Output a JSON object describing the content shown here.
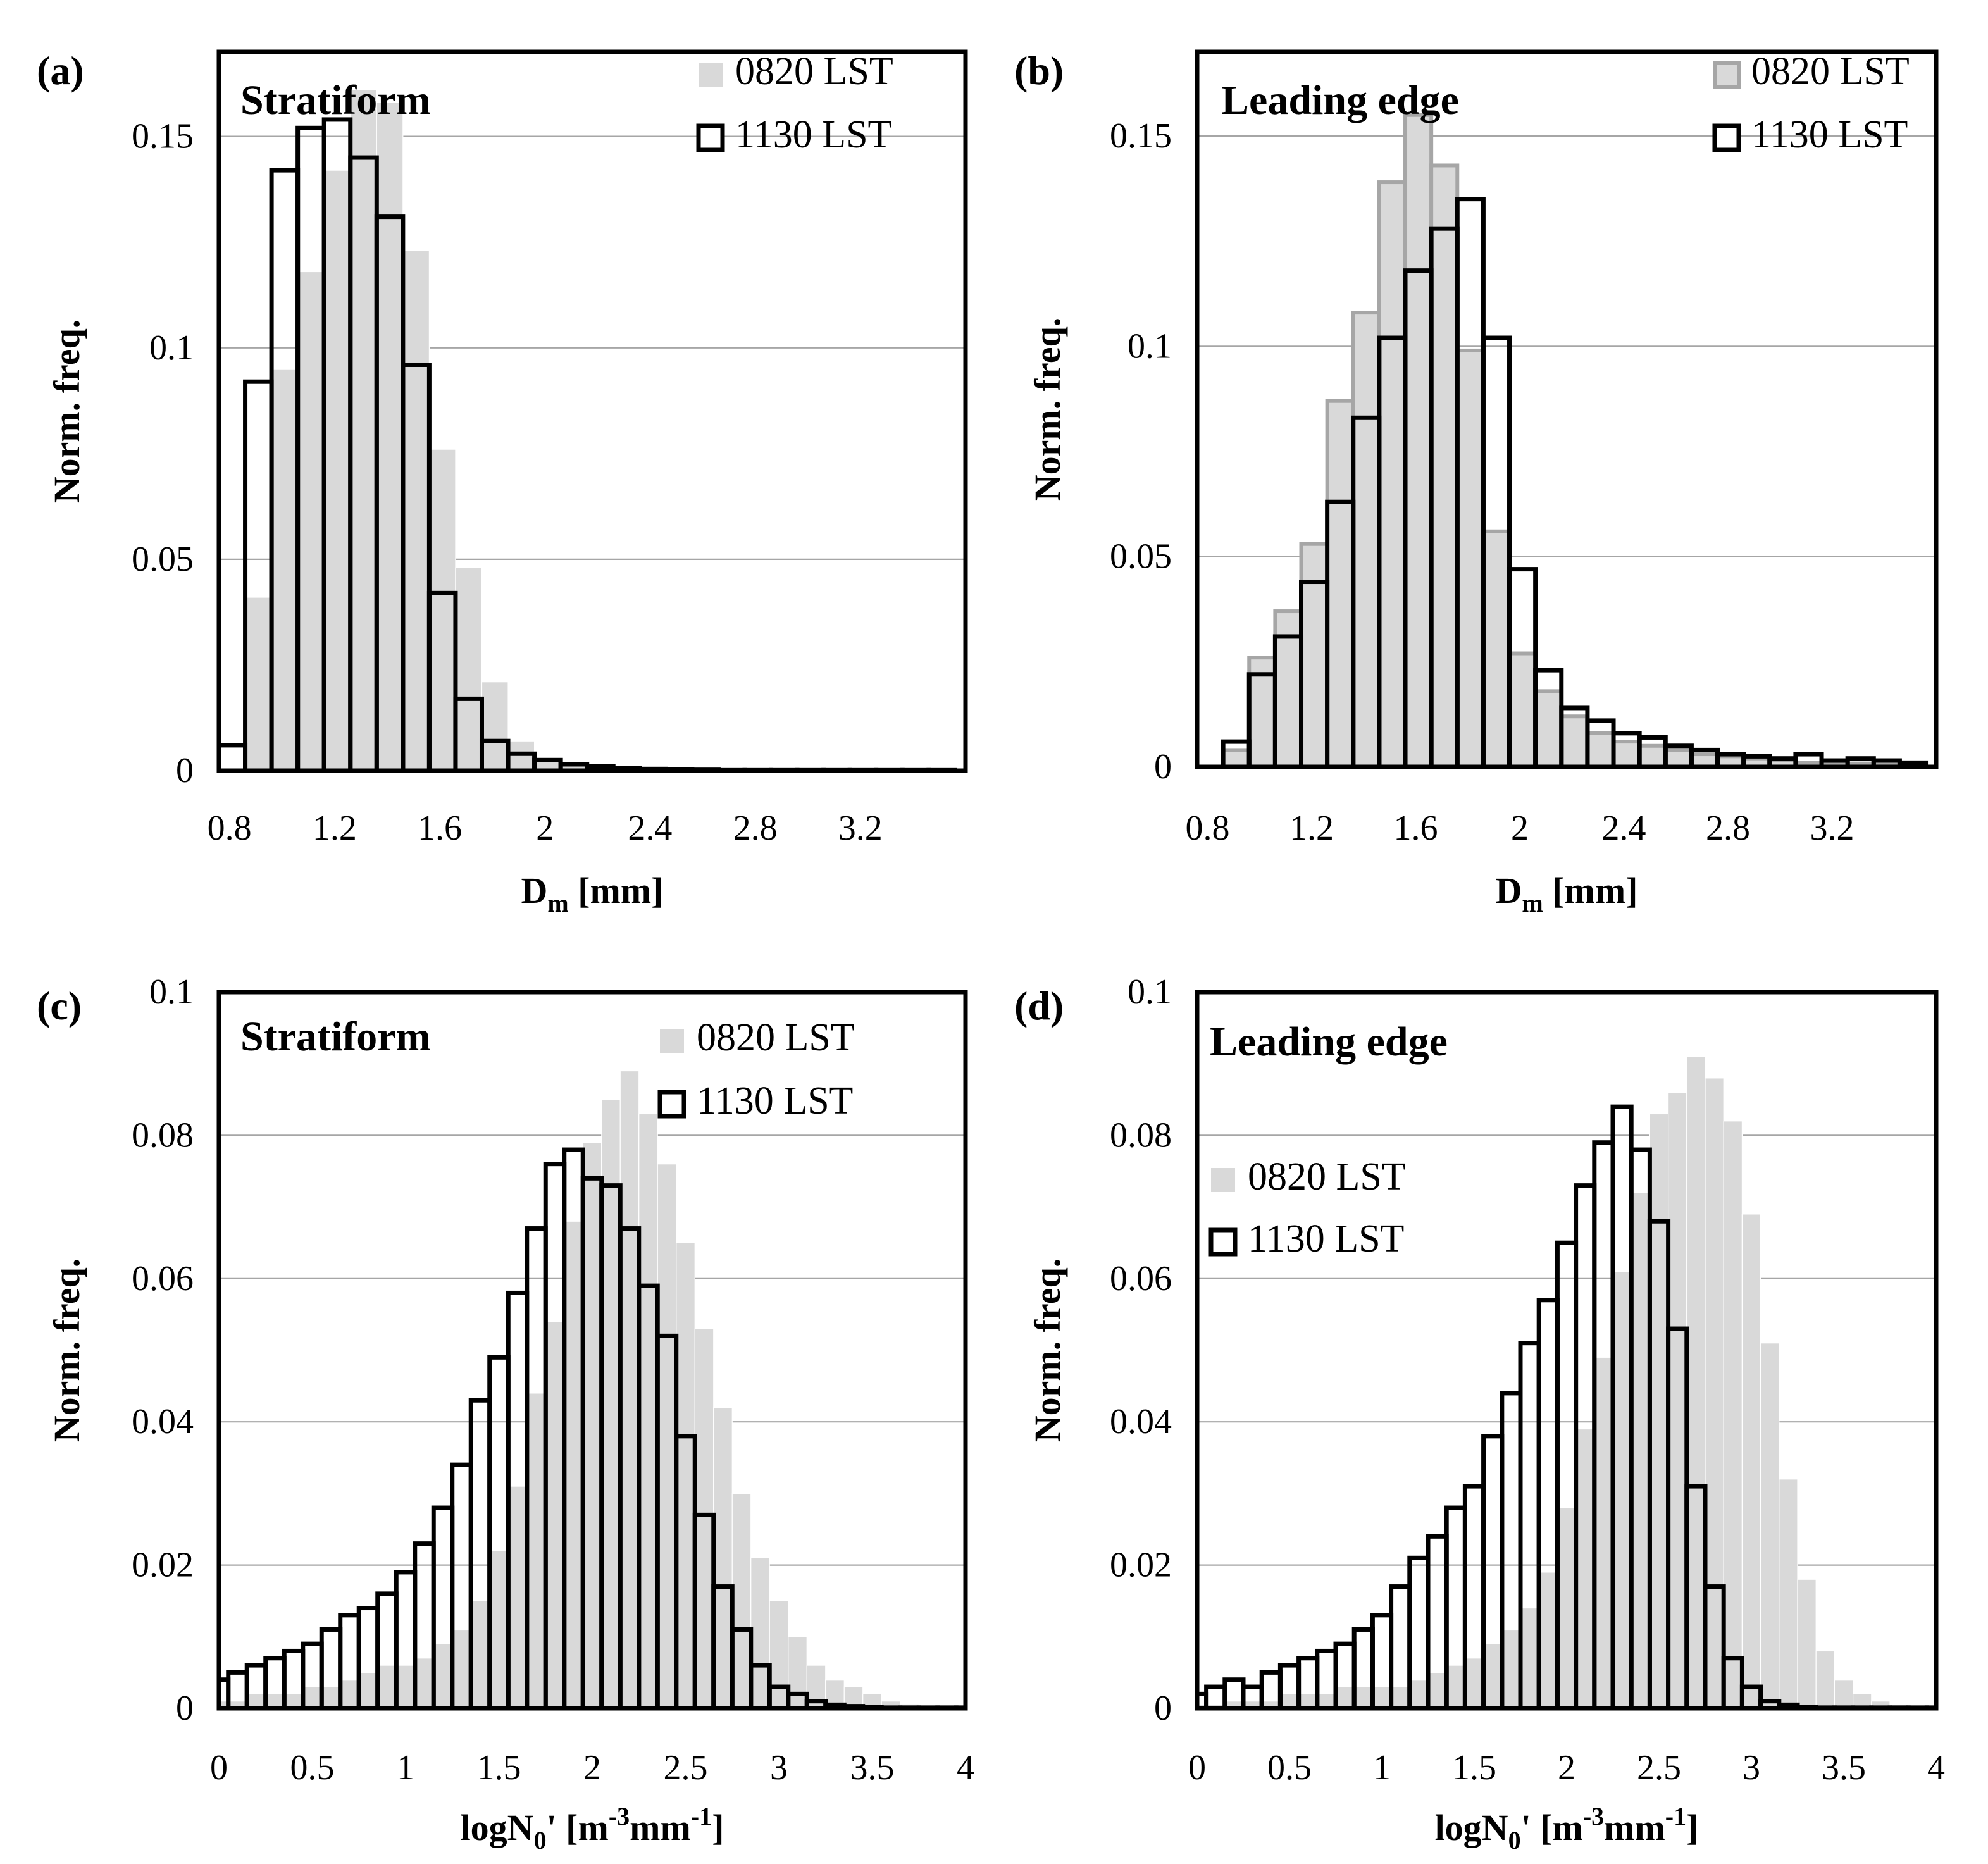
{
  "colors": {
    "series_0820_fill": "#d9d9d9",
    "series_0820_edge_leading": "#a6a6a6",
    "series_1130_edge": "#000000",
    "grid": "#a6a6a6"
  },
  "chart_data": [
    {
      "id": "a",
      "panel_label": "(a)",
      "type": "bar",
      "title": "Stratiform",
      "xlabel_main": "D",
      "xlabel_sub": "m",
      "xlabel_unit": " [mm]",
      "ylabel": "Norm. freq.",
      "xlim": [
        0.76,
        3.6
      ],
      "ylim": [
        0,
        0.17
      ],
      "xticks": [
        0.8,
        1.2,
        1.6,
        2,
        2.4,
        2.8,
        3.2
      ],
      "xtick_labels": [
        "0.8",
        "1.2",
        "1.6",
        "2",
        "2.4",
        "2.8",
        "3.2"
      ],
      "yticks": [
        0,
        0.05,
        0.1,
        0.15
      ],
      "ytick_labels": [
        "0",
        "0.05",
        "0.1",
        "0.15"
      ],
      "grid": true,
      "legend_position": "top-right",
      "bin_start": 0.76,
      "bin_width": 0.1,
      "series": [
        {
          "name": "0820 LST",
          "style": "fill",
          "values": [
            0.0,
            0.041,
            0.095,
            0.118,
            0.142,
            0.161,
            0.158,
            0.123,
            0.076,
            0.048,
            0.021,
            0.007,
            0.003,
            0.0015,
            0.001,
            0.0006,
            0.0004,
            0.0003,
            0.0002,
            0.0001,
            0.0001,
            0.0001,
            0.0001,
            0.0001,
            0.0001,
            0.0001,
            0.0001,
            0.0001
          ]
        },
        {
          "name": "1130 LST",
          "style": "outline",
          "values": [
            0.006,
            0.092,
            0.142,
            0.152,
            0.154,
            0.145,
            0.131,
            0.096,
            0.042,
            0.017,
            0.007,
            0.004,
            0.0025,
            0.0015,
            0.001,
            0.0006,
            0.0004,
            0.0003,
            0.0002,
            0.0001,
            0.0001,
            0.0001,
            0.0001,
            0.0001,
            0.0001,
            0.0001,
            0.0001,
            0.0001
          ]
        }
      ]
    },
    {
      "id": "b",
      "panel_label": "(b)",
      "type": "bar",
      "title": "Leading edge",
      "xlabel_main": "D",
      "xlabel_sub": "m",
      "xlabel_unit": " [mm]",
      "ylabel": "Norm. freq.",
      "xlim": [
        0.76,
        3.6
      ],
      "ylim": [
        0,
        0.17
      ],
      "xticks": [
        0.8,
        1.2,
        1.6,
        2,
        2.4,
        2.8,
        3.2
      ],
      "xtick_labels": [
        "0.8",
        "1.2",
        "1.6",
        "2",
        "2.4",
        "2.8",
        "3.2"
      ],
      "yticks": [
        0,
        0.05,
        0.1,
        0.15
      ],
      "ytick_labels": [
        "0",
        "0.05",
        "0.1",
        "0.15"
      ],
      "grid": true,
      "legend_position": "top-right",
      "bin_start": 0.86,
      "bin_width": 0.1,
      "series": [
        {
          "name": "0820 LST",
          "style": "fill-edge",
          "values": [
            0.004,
            0.026,
            0.037,
            0.053,
            0.087,
            0.108,
            0.139,
            0.155,
            0.143,
            0.099,
            0.056,
            0.027,
            0.018,
            0.012,
            0.008,
            0.006,
            0.005,
            0.004,
            0.003,
            0.0025,
            0.002,
            0.0015,
            0.001,
            0.001,
            0.0008,
            0.0005,
            0.0004
          ]
        },
        {
          "name": "1130 LST",
          "style": "outline",
          "values": [
            0.006,
            0.022,
            0.031,
            0.044,
            0.063,
            0.083,
            0.102,
            0.118,
            0.128,
            0.135,
            0.102,
            0.047,
            0.023,
            0.014,
            0.011,
            0.008,
            0.007,
            0.005,
            0.004,
            0.003,
            0.0025,
            0.002,
            0.003,
            0.0015,
            0.002,
            0.0015,
            0.001
          ]
        }
      ]
    },
    {
      "id": "c",
      "panel_label": "(c)",
      "type": "bar",
      "title": "Stratiform",
      "xlabel_main": "logN",
      "xlabel_sub": "0",
      "xlabel_unit": "' [m-3mm-1]",
      "xlabel_unit_parts": [
        "' [m",
        "-3",
        "mm",
        "-1",
        "]"
      ],
      "ylabel": "Norm. freq.",
      "xlim": [
        0,
        4
      ],
      "ylim": [
        0,
        0.1
      ],
      "xticks": [
        0,
        0.5,
        1,
        1.5,
        2,
        2.5,
        3,
        3.5,
        4
      ],
      "xtick_labels": [
        "0",
        "0.5",
        "1",
        "1.5",
        "2",
        "2.5",
        "3",
        "3.5",
        "4"
      ],
      "yticks": [
        0,
        0.02,
        0.04,
        0.06,
        0.08,
        0.1
      ],
      "ytick_labels": [
        "0",
        "0.02",
        "0.04",
        "0.06",
        "0.08",
        "0.1"
      ],
      "grid": true,
      "legend_position": "top-right",
      "bin_start": -0.05,
      "bin_width": 0.1,
      "series": [
        {
          "name": "0820 LST",
          "style": "fill",
          "values": [
            0.001,
            0.001,
            0.002,
            0.002,
            0.002,
            0.003,
            0.003,
            0.004,
            0.005,
            0.006,
            0.006,
            0.007,
            0.009,
            0.011,
            0.015,
            0.022,
            0.031,
            0.044,
            0.054,
            0.068,
            0.079,
            0.085,
            0.089,
            0.083,
            0.076,
            0.065,
            0.053,
            0.042,
            0.03,
            0.021,
            0.015,
            0.01,
            0.006,
            0.004,
            0.003,
            0.002,
            0.001,
            0.0006,
            0.0003,
            0.0001,
            0.0001
          ]
        },
        {
          "name": "1130 LST",
          "style": "outline",
          "values": [
            0.004,
            0.005,
            0.006,
            0.007,
            0.008,
            0.009,
            0.011,
            0.013,
            0.014,
            0.016,
            0.019,
            0.023,
            0.028,
            0.034,
            0.043,
            0.049,
            0.058,
            0.067,
            0.076,
            0.078,
            0.074,
            0.073,
            0.067,
            0.059,
            0.052,
            0.038,
            0.027,
            0.017,
            0.011,
            0.006,
            0.003,
            0.002,
            0.001,
            0.0005,
            0.0003,
            0.0002,
            0.0001,
            0.0001,
            0.0001,
            0.0001,
            0.0001
          ]
        }
      ]
    },
    {
      "id": "d",
      "panel_label": "(d)",
      "type": "bar",
      "title": "Leading edge",
      "xlabel_main": "logN",
      "xlabel_sub": "0",
      "xlabel_unit": "' [m-3mm-1]",
      "xlabel_unit_parts": [
        "' [m",
        "-3",
        "mm",
        "-1",
        "]"
      ],
      "ylabel": "Norm. freq.",
      "xlim": [
        0,
        4
      ],
      "ylim": [
        0,
        0.1
      ],
      "xticks": [
        0,
        0.5,
        1,
        1.5,
        2,
        2.5,
        3,
        3.5,
        4
      ],
      "xtick_labels": [
        "0",
        "0.5",
        "1",
        "1.5",
        "2",
        "2.5",
        "3",
        "3.5",
        "4"
      ],
      "yticks": [
        0,
        0.02,
        0.04,
        0.06,
        0.08,
        0.1
      ],
      "ytick_labels": [
        "0",
        "0.02",
        "0.04",
        "0.06",
        "0.08",
        "0.1"
      ],
      "grid": true,
      "legend_position": "center-left",
      "bin_start": -0.05,
      "bin_width": 0.1,
      "series": [
        {
          "name": "0820 LST",
          "style": "fill",
          "values": [
            0.0005,
            0.0005,
            0.001,
            0.001,
            0.001,
            0.002,
            0.002,
            0.002,
            0.003,
            0.003,
            0.003,
            0.003,
            0.004,
            0.005,
            0.006,
            0.007,
            0.009,
            0.011,
            0.014,
            0.019,
            0.028,
            0.039,
            0.049,
            0.061,
            0.072,
            0.083,
            0.086,
            0.091,
            0.088,
            0.082,
            0.069,
            0.051,
            0.032,
            0.018,
            0.008,
            0.004,
            0.002,
            0.001,
            0.0005,
            0.0002,
            0.0001
          ]
        },
        {
          "name": "1130 LST",
          "style": "outline",
          "values": [
            0.002,
            0.003,
            0.004,
            0.003,
            0.005,
            0.006,
            0.007,
            0.008,
            0.009,
            0.011,
            0.013,
            0.017,
            0.021,
            0.024,
            0.028,
            0.031,
            0.038,
            0.044,
            0.051,
            0.057,
            0.065,
            0.073,
            0.079,
            0.084,
            0.078,
            0.068,
            0.053,
            0.031,
            0.017,
            0.007,
            0.003,
            0.001,
            0.0005,
            0.0002,
            0.0001,
            0.0001,
            0.0001,
            0.0001,
            0.0001,
            0.0001,
            0.0001
          ]
        }
      ]
    }
  ]
}
